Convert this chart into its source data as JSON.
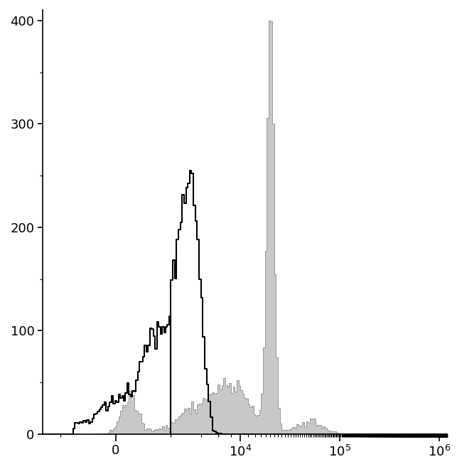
{
  "title": "",
  "ylim": [
    0,
    410
  ],
  "yticks": [
    0,
    100,
    200,
    300,
    400
  ],
  "background_color": "#ffffff",
  "black_hist_color": "#000000",
  "gray_hist_color": "#c8c8c8",
  "gray_hist_edge_color": "#999999",
  "figsize": [
    6.5,
    6.6
  ],
  "dpi": 100,
  "symlog_linthresh": 2000,
  "symlog_linscale": 0.5,
  "xlim_min": -3000,
  "xlim_max": 1200000
}
